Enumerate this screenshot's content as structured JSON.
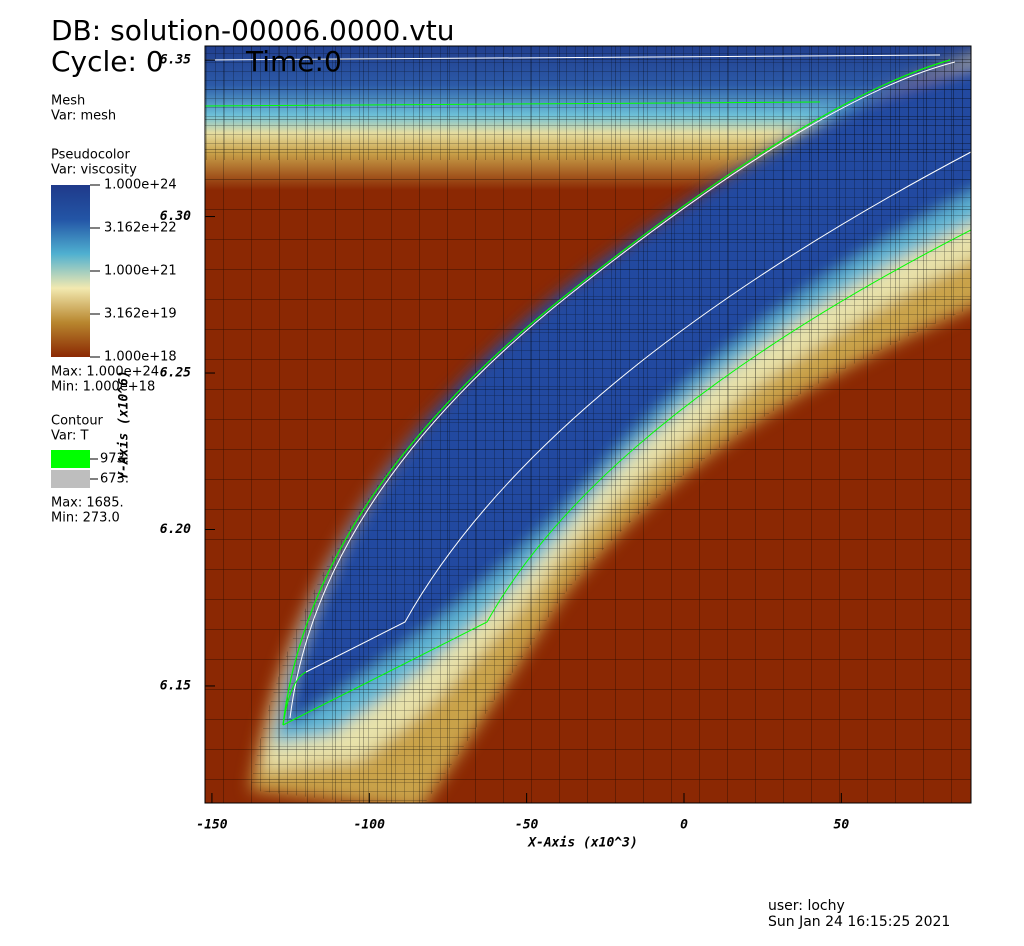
{
  "chart_data": {
    "type": "pseudocolor",
    "title": "DB: solution-00006.0000.vtu",
    "cycle": "Cycle: 0",
    "time": "Time:0",
    "xlabel": "X-Axis (x10^3)",
    "ylabel": "Y-Axis (x10^6)",
    "xlim": [
      -152.2,
      91.2
    ],
    "ylim": [
      6.1126,
      6.3545
    ],
    "xticks": [
      -150,
      -100,
      -50,
      0,
      50
    ],
    "yticks": [
      6.15,
      {
        "value": 6.2,
        "label": "6.20"
      },
      6.25,
      {
        "value": 6.3,
        "label": "6.30"
      },
      6.35
    ],
    "mesh_legend": {
      "name": "Mesh",
      "var": "Var: mesh"
    },
    "colorbar": {
      "name": "Pseudocolor",
      "var": "Var: viscosity",
      "log": true,
      "lim": [
        1e+18,
        1e+24
      ],
      "colors": [
        "#8b2803",
        "#b8862e",
        "#f2e9b0",
        "#4fb0d0",
        "#2355a6",
        "#1f3a8a"
      ],
      "ticks": [
        {
          "value": 1e+24,
          "label": "1.000e+24"
        },
        {
          "value": 3.162e+22,
          "label": "3.162e+22"
        },
        {
          "value": 1e+21,
          "label": "1.000e+21"
        },
        {
          "value": 3.162e+19,
          "label": "3.162e+19"
        },
        {
          "value": 1e+18,
          "label": "1.000e+18"
        }
      ],
      "max": "Max:  1.000e+24",
      "min": "Min:  1.000e+18"
    },
    "contour": {
      "name": "Contour",
      "var": "Var: T",
      "levels": [
        {
          "value": 973,
          "label": "973.",
          "color": "#00ff00"
        },
        {
          "value": 673,
          "label": "673.",
          "color": "#bebebe"
        }
      ],
      "max": "Max:  1685.",
      "min": "Min:  273.0"
    },
    "user": "user: lochy",
    "date": "Sun Jan 24 16:15:25 2021"
  }
}
